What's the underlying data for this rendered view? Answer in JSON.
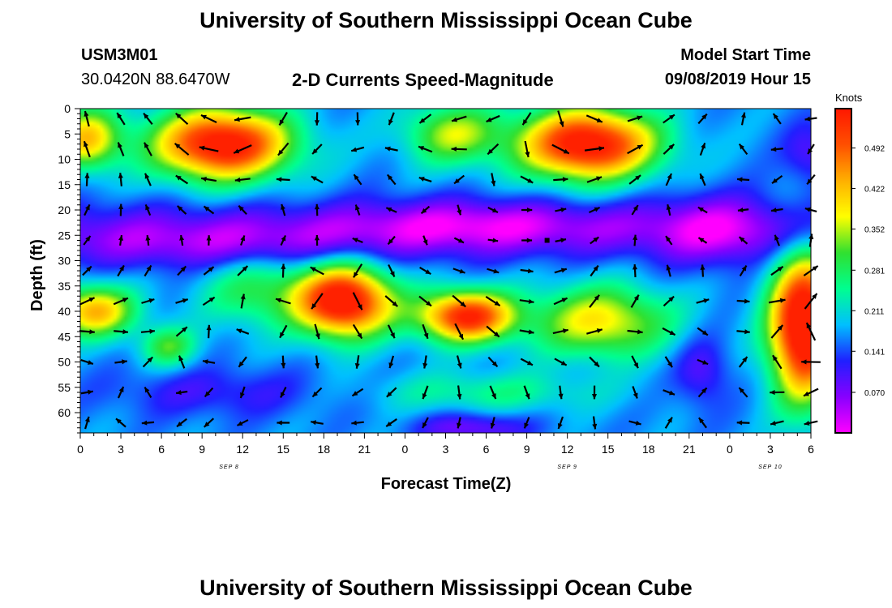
{
  "header": {
    "title_top": "University of Southern Mississippi Ocean Cube",
    "station_id": "USM3M01",
    "location": "30.0420N 88.6470W",
    "product": "2-D Currents Speed-Magnitude",
    "start_label": "Model Start Time",
    "start_value": "09/08/2019 Hour 15",
    "title_bottom": "University of Southern Mississippi Ocean Cube"
  },
  "chart_data": {
    "type": "heatmap",
    "title": "2-D Currents Speed-Magnitude",
    "xlabel": "Forecast Time(Z)",
    "ylabel": "Depth (ft)",
    "x_tick_labels": [
      "0",
      "3",
      "6",
      "9",
      "12",
      "15",
      "18",
      "21",
      "0",
      "3",
      "6",
      "9",
      "12",
      "15",
      "18",
      "21",
      "0",
      "3",
      "6"
    ],
    "x_hours": [
      0,
      3,
      6,
      9,
      12,
      15,
      18,
      21,
      24,
      27,
      30,
      33,
      36,
      39,
      42,
      45,
      48,
      51,
      54
    ],
    "x_range_hours": [
      0,
      54
    ],
    "date_labels": [
      {
        "text": "SEP 8",
        "hour": 11
      },
      {
        "text": "SEP 9",
        "hour": 36
      },
      {
        "text": "SEP 10",
        "hour": 51
      }
    ],
    "y_ticks": [
      0,
      5,
      10,
      15,
      20,
      25,
      30,
      35,
      40,
      45,
      50,
      55,
      60
    ],
    "y_range_ft": [
      0,
      64
    ],
    "y_inverted": true,
    "colorbar": {
      "unit": "Knots",
      "ticks": [
        0.07,
        0.141,
        0.211,
        0.281,
        0.352,
        0.422,
        0.492
      ],
      "tick_labels": [
        "0.070",
        "0.141",
        "0.211",
        "0.281",
        "0.352",
        "0.422",
        "0.492"
      ],
      "range": [
        0.0,
        0.56
      ],
      "colors": [
        "#ff00ff",
        "#8800ff",
        "#2020ff",
        "#00c0ff",
        "#00ff90",
        "#30e030",
        "#ffff00",
        "#ffb000",
        "#ff5000",
        "#ff1800"
      ]
    },
    "speed_blobs": [
      {
        "t": 10.5,
        "d": 7,
        "sx": 5,
        "sd": 7,
        "a": 0.42
      },
      {
        "t": 0.5,
        "d": 6,
        "sx": 2.5,
        "sd": 6,
        "a": 0.24
      },
      {
        "t": 27.5,
        "d": 5,
        "sx": 3.5,
        "sd": 6,
        "a": 0.18
      },
      {
        "t": 37.5,
        "d": 7,
        "sx": 5,
        "sd": 7,
        "a": 0.42
      },
      {
        "t": 19.5,
        "d": 38,
        "sx": 3.5,
        "sd": 7,
        "a": 0.43
      },
      {
        "t": 28.5,
        "d": 41,
        "sx": 3.5,
        "sd": 5,
        "a": 0.38
      },
      {
        "t": 38.5,
        "d": 42,
        "sx": 5,
        "sd": 7,
        "a": 0.22
      },
      {
        "t": 53.5,
        "d": 43,
        "sx": 2.5,
        "sd": 14,
        "a": 0.47
      },
      {
        "t": 1,
        "d": 40,
        "sx": 3,
        "sd": 5,
        "a": 0.26
      },
      {
        "t": 13,
        "d": 36,
        "sx": 4,
        "sd": 7,
        "a": 0.12
      },
      {
        "t": 6.5,
        "d": 47,
        "sx": 2,
        "sd": 4,
        "a": 0.14
      },
      {
        "t": 30,
        "d": 56,
        "sx": 8,
        "sd": 4,
        "a": 0.08
      }
    ],
    "slow_blobs": [
      {
        "t": 29,
        "d": 23,
        "sx": 10,
        "sd": 5,
        "a": 0.1
      },
      {
        "t": 10,
        "d": 27,
        "sx": 12,
        "sd": 5,
        "a": 0.08
      },
      {
        "t": 47,
        "d": 24,
        "sx": 5,
        "sd": 7,
        "a": 0.1
      },
      {
        "t": 29,
        "d": 63,
        "sx": 4,
        "sd": 3,
        "a": 0.1
      },
      {
        "t": 46,
        "d": 52,
        "sx": 2,
        "sd": 7,
        "a": 0.08
      },
      {
        "t": 54,
        "d": 9,
        "sx": 2,
        "sd": 6,
        "a": 0.08
      },
      {
        "t": 10,
        "d": 56,
        "sx": 8,
        "sd": 5,
        "a": 0.06
      }
    ],
    "vector_grid": {
      "hours": [
        0.5,
        3,
        5,
        7.5,
        9.5,
        12,
        15,
        17.5,
        20.5,
        23,
        25.5,
        28,
        30.5,
        33,
        35.5,
        38,
        41,
        43.5,
        46,
        49,
        51.5,
        54
      ],
      "depths": [
        2,
        8,
        14,
        20,
        26,
        32,
        38,
        44,
        50,
        56,
        62
      ],
      "angle_field": {
        "base": 45,
        "ta": 0.35,
        "dd": 9,
        "tb": 0.13,
        "dc": 6
      }
    },
    "marker": {
      "hour": 34.5,
      "depth_ft": 26
    }
  }
}
